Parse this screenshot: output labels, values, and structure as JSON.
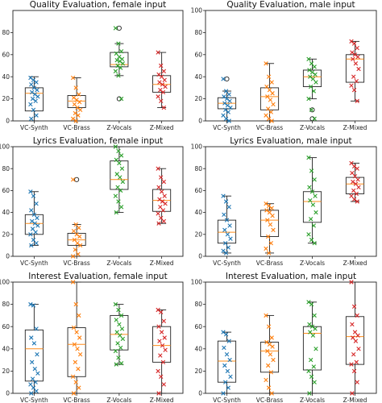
{
  "colors": {
    "VC-Synth": "#1f77b4",
    "VC-Brass": "#ff7f0e",
    "Z-Vocals": "#2ca02c",
    "Z-Mixed": "#d62728",
    "median": "#ff8c1a",
    "box": "#222222"
  },
  "chart_data": [
    {
      "type": "box",
      "title": "Quality Evaluation, female input",
      "categories": [
        "VC-Synth",
        "VC-Brass",
        "Z-Vocals",
        "Z-Mixed"
      ],
      "ylim": [
        0,
        100
      ],
      "yticks": [
        0,
        20,
        40,
        60,
        80
      ],
      "boxes": [
        {
          "whislo": 0,
          "q1": 9,
          "med": 25,
          "q3": 30,
          "whishi": 40,
          "fliers": []
        },
        {
          "whislo": 0,
          "q1": 12,
          "med": 18,
          "q3": 23,
          "whishi": 39,
          "fliers": []
        },
        {
          "whislo": 41,
          "q1": 49,
          "med": 51,
          "q3": 62,
          "whishi": 70,
          "fliers": [
            20,
            84
          ]
        },
        {
          "whislo": 12,
          "q1": 26,
          "med": 33,
          "q3": 41,
          "whishi": 62,
          "fliers": []
        }
      ],
      "points": [
        [
          39,
          37,
          35,
          33,
          30,
          28,
          26,
          24,
          22,
          20,
          18,
          15,
          10,
          5,
          2
        ],
        [
          39,
          30,
          24,
          21,
          19,
          17,
          15,
          12,
          10,
          7,
          5,
          2,
          0
        ],
        [
          84,
          70,
          63,
          61,
          58,
          56,
          55,
          54,
          52,
          50,
          48,
          45,
          41,
          20
        ],
        [
          62,
          50,
          45,
          42,
          40,
          37,
          35,
          33,
          31,
          28,
          26,
          22,
          18,
          12
        ]
      ]
    },
    {
      "type": "box",
      "title": "Quality Evaluation, male input",
      "categories": [
        "VC-Synth",
        "VC-Brass",
        "Z-Vocals",
        "Z-Mixed"
      ],
      "ylim": [
        0,
        100
      ],
      "yticks": [
        0,
        20,
        40,
        60,
        80,
        100
      ],
      "boxes": [
        {
          "whislo": 0,
          "q1": 11,
          "med": 16,
          "q3": 21,
          "whishi": 27,
          "fliers": [
            38
          ]
        },
        {
          "whislo": 0,
          "q1": 10,
          "med": 22,
          "q3": 30,
          "whishi": 52,
          "fliers": []
        },
        {
          "whislo": 20,
          "q1": 31,
          "med": 40,
          "q3": 46,
          "whishi": 56,
          "fliers": [
            2,
            10
          ]
        },
        {
          "whislo": 18,
          "q1": 35,
          "med": 56,
          "q3": 60,
          "whishi": 72,
          "fliers": []
        }
      ],
      "points": [
        [
          38,
          27,
          24,
          22,
          20,
          18,
          16,
          14,
          12,
          10,
          8,
          5,
          2,
          0
        ],
        [
          52,
          40,
          35,
          31,
          28,
          25,
          22,
          19,
          15,
          11,
          8,
          5,
          2,
          0
        ],
        [
          56,
          52,
          49,
          46,
          44,
          42,
          40,
          38,
          35,
          31,
          27,
          20,
          10,
          2
        ],
        [
          72,
          70,
          66,
          62,
          60,
          58,
          56,
          52,
          47,
          40,
          36,
          32,
          28,
          18
        ]
      ]
    },
    {
      "type": "box",
      "title": "Lyrics Evaluation, female input",
      "categories": [
        "VC-Synth",
        "VC-Brass",
        "Z-Vocals",
        "Z-Mixed"
      ],
      "ylim": [
        0,
        100
      ],
      "yticks": [
        0,
        20,
        40,
        60,
        80,
        100
      ],
      "boxes": [
        {
          "whislo": 10,
          "q1": 20,
          "med": 30,
          "q3": 38,
          "whishi": 59,
          "fliers": []
        },
        {
          "whislo": 0,
          "q1": 10,
          "med": 15,
          "q3": 21,
          "whishi": 29,
          "fliers": [
            70
          ]
        },
        {
          "whislo": 40,
          "q1": 61,
          "med": 70,
          "q3": 87,
          "whishi": 100,
          "fliers": []
        },
        {
          "whislo": 30,
          "q1": 41,
          "med": 51,
          "q3": 61,
          "whishi": 80,
          "fliers": []
        }
      ],
      "points": [
        [
          59,
          55,
          48,
          42,
          38,
          35,
          32,
          30,
          28,
          25,
          22,
          20,
          15,
          12,
          10
        ],
        [
          70,
          29,
          26,
          23,
          20,
          18,
          15,
          12,
          10,
          6,
          2,
          0
        ],
        [
          100,
          96,
          92,
          88,
          85,
          80,
          75,
          72,
          68,
          63,
          60,
          55,
          50,
          45,
          40
        ],
        [
          80,
          72,
          68,
          63,
          59,
          55,
          52,
          50,
          48,
          45,
          42,
          39,
          35,
          32,
          30
        ]
      ]
    },
    {
      "type": "box",
      "title": "Lyrics Evaluation, male input",
      "categories": [
        "VC-Synth",
        "VC-Brass",
        "Z-Vocals",
        "Z-Mixed"
      ],
      "ylim": [
        0,
        100
      ],
      "yticks": [
        0,
        20,
        40,
        60,
        80,
        100
      ],
      "boxes": [
        {
          "whislo": 3,
          "q1": 12,
          "med": 22,
          "q3": 33,
          "whishi": 55,
          "fliers": []
        },
        {
          "whislo": 3,
          "q1": 18,
          "med": 33,
          "q3": 42,
          "whishi": 48,
          "fliers": []
        },
        {
          "whislo": 12,
          "q1": 31,
          "med": 50,
          "q3": 59,
          "whishi": 90,
          "fliers": []
        },
        {
          "whislo": 50,
          "q1": 57,
          "med": 66,
          "q3": 72,
          "whishi": 85,
          "fliers": []
        }
      ],
      "points": [
        [
          55,
          50,
          45,
          38,
          33,
          28,
          24,
          20,
          16,
          12,
          8,
          5,
          3
        ],
        [
          48,
          46,
          44,
          42,
          40,
          37,
          33,
          29,
          24,
          18,
          12,
          7,
          3
        ],
        [
          90,
          78,
          70,
          63,
          59,
          55,
          51,
          47,
          40,
          34,
          28,
          20,
          15,
          12
        ],
        [
          85,
          82,
          80,
          76,
          73,
          70,
          68,
          66,
          63,
          60,
          57,
          55,
          52,
          50
        ]
      ]
    },
    {
      "type": "box",
      "title": "Interest Evaluation, female input",
      "categories": [
        "VC-Synth",
        "VC-Brass",
        "Z-Vocals",
        "Z-Mixed"
      ],
      "ylim": [
        0,
        100
      ],
      "yticks": [
        0,
        20,
        40,
        60,
        80,
        100
      ],
      "boxes": [
        {
          "whislo": 0,
          "q1": 11,
          "med": 40,
          "q3": 57,
          "whishi": 80,
          "fliers": []
        },
        {
          "whislo": 0,
          "q1": 15,
          "med": 44,
          "q3": 59,
          "whishi": 100,
          "fliers": []
        },
        {
          "whislo": 26,
          "q1": 39,
          "med": 53,
          "q3": 70,
          "whishi": 80,
          "fliers": []
        },
        {
          "whislo": 0,
          "q1": 28,
          "med": 43,
          "q3": 60,
          "whishi": 75,
          "fliers": []
        }
      ],
      "points": [
        [
          80,
          79,
          58,
          50,
          45,
          35,
          28,
          22,
          18,
          13,
          10,
          8,
          5,
          2,
          0
        ],
        [
          100,
          80,
          70,
          59,
          55,
          50,
          44,
          40,
          35,
          28,
          22,
          15,
          10,
          5,
          0
        ],
        [
          80,
          75,
          70,
          66,
          62,
          58,
          55,
          52,
          49,
          45,
          41,
          38,
          32,
          27,
          26
        ],
        [
          75,
          73,
          65,
          60,
          55,
          50,
          47,
          43,
          39,
          34,
          28,
          20,
          15,
          8,
          0
        ]
      ]
    },
    {
      "type": "box",
      "title": "Interest Evaluation, male input",
      "categories": [
        "VC-Synth",
        "VC-Brass",
        "Z-Vocals",
        "Z-Mixed"
      ],
      "ylim": [
        0,
        100
      ],
      "yticks": [
        0,
        20,
        40,
        60,
        80,
        100
      ],
      "boxes": [
        {
          "whislo": 0,
          "q1": 10,
          "med": 29,
          "q3": 47,
          "whishi": 55,
          "fliers": []
        },
        {
          "whislo": 0,
          "q1": 19,
          "med": 38,
          "q3": 46,
          "whishi": 70,
          "fliers": []
        },
        {
          "whislo": 0,
          "q1": 21,
          "med": 54,
          "q3": 60,
          "whishi": 82,
          "fliers": []
        },
        {
          "whislo": 0,
          "q1": 26,
          "med": 51,
          "q3": 69,
          "whishi": 100,
          "fliers": []
        }
      ],
      "points": [
        [
          55,
          53,
          47,
          41,
          35,
          30,
          25,
          20,
          15,
          10,
          5,
          0
        ],
        [
          70,
          60,
          50,
          46,
          44,
          42,
          38,
          35,
          30,
          25,
          19,
          12,
          5,
          0
        ],
        [
          82,
          80,
          70,
          62,
          60,
          58,
          55,
          52,
          40,
          30,
          24,
          20,
          15,
          10,
          0
        ],
        [
          100,
          78,
          70,
          62,
          55,
          52,
          50,
          47,
          40,
          35,
          28,
          26,
          20,
          10,
          0
        ]
      ]
    }
  ]
}
